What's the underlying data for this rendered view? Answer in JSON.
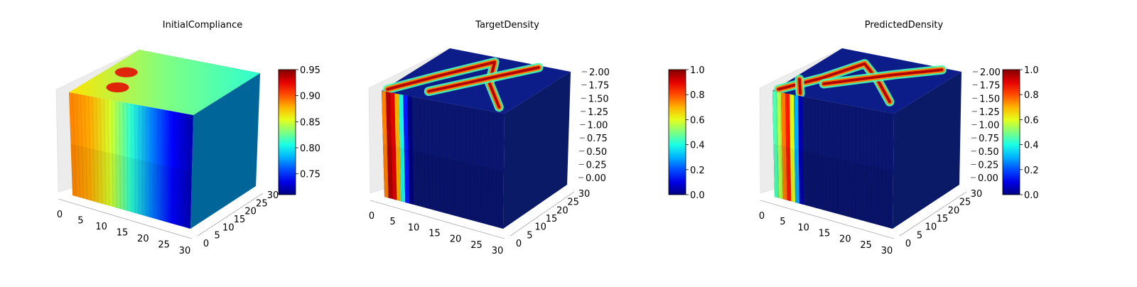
{
  "figure": {
    "panel_count": 3
  },
  "chart_data": [
    {
      "type": "heatmap",
      "subtype": "3d-voxel-cube",
      "title": "InitialCompliance",
      "x_ticks": [
        "0",
        "5",
        "10",
        "15",
        "20",
        "25",
        "30"
      ],
      "y_ticks": [
        "0",
        "5",
        "10",
        "15",
        "20",
        "25",
        "30"
      ],
      "z_ticks": [],
      "colorbar": {
        "colormap": "jet",
        "range": [
          0.71,
          0.95
        ],
        "ticks": [
          "0.75",
          "0.80",
          "0.85",
          "0.90",
          "0.95"
        ]
      },
      "front_face_gradient_x": [
        0,
        5,
        10,
        15,
        20,
        25,
        30
      ],
      "front_face_values": [
        0.89,
        0.88,
        0.85,
        0.81,
        0.77,
        0.74,
        0.72
      ],
      "right_face_value": 0.78,
      "top_face_value": 0.83
    },
    {
      "type": "heatmap",
      "subtype": "3d-voxel-cube",
      "title": "TargetDensity",
      "x_ticks": [
        "0",
        "5",
        "10",
        "15",
        "20",
        "25",
        "30"
      ],
      "y_ticks": [
        "0",
        "5",
        "10",
        "15",
        "20",
        "25",
        "30"
      ],
      "z_ticks": [
        "0.00",
        "0.25",
        "0.50",
        "0.75",
        "1.00",
        "1.25",
        "1.50",
        "1.75",
        "2.00"
      ],
      "colorbar": {
        "colormap": "jet",
        "range": [
          0.0,
          1.0
        ],
        "ticks": [
          "0.0",
          "0.2",
          "0.4",
          "0.6",
          "0.8",
          "1.0"
        ]
      },
      "front_face_gradient_x": [
        0,
        1,
        2,
        3,
        4,
        5,
        6
      ],
      "front_face_values": [
        0.75,
        0.95,
        0.9,
        0.7,
        0.4,
        0.15,
        0.0
      ]
    },
    {
      "type": "heatmap",
      "subtype": "3d-voxel-cube",
      "title": "PredictedDensity",
      "x_ticks": [
        "0",
        "5",
        "10",
        "15",
        "20",
        "25",
        "30"
      ],
      "y_ticks": [
        "0",
        "5",
        "10",
        "15",
        "20",
        "25",
        "30"
      ],
      "z_ticks": [
        "0.00",
        "0.25",
        "0.50",
        "0.75",
        "1.00",
        "1.25",
        "1.50",
        "1.75",
        "2.00"
      ],
      "colorbar": {
        "colormap": "jet",
        "range": [
          0.0,
          1.0
        ],
        "ticks": [
          "0.0",
          "0.2",
          "0.4",
          "0.6",
          "0.8",
          "1.0"
        ]
      },
      "front_face_gradient_x": [
        0,
        1,
        2,
        3,
        4,
        5,
        6
      ],
      "front_face_values": [
        0.45,
        0.55,
        0.75,
        0.85,
        0.6,
        0.3,
        0.05
      ]
    }
  ]
}
